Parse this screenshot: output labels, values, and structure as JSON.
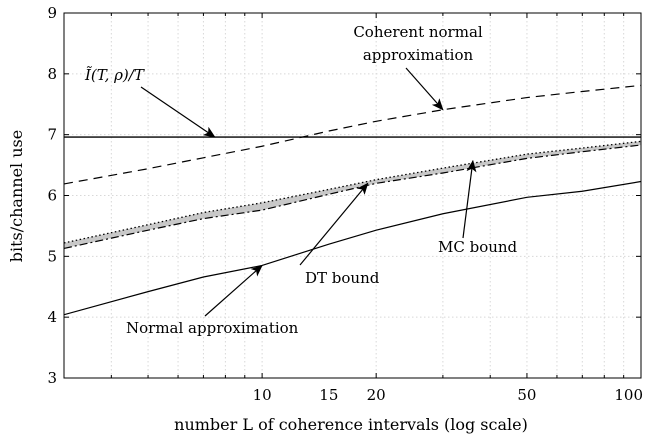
{
  "chart_data": {
    "type": "line",
    "title": "",
    "xlabel": "number L of coherence intervals (log scale)",
    "ylabel": "bits/channel use",
    "xscale": "log",
    "xlim": [
      3,
      100
    ],
    "ylim": [
      3,
      9
    ],
    "xticks": [
      10,
      15,
      20,
      50,
      100
    ],
    "yticks": [
      3,
      4,
      5,
      6,
      7,
      8,
      9
    ],
    "grid": true,
    "series": [
      {
        "name": "Coherent normal approximation",
        "style": "dashed",
        "x": [
          3,
          5,
          7,
          10,
          15,
          20,
          30,
          50,
          70,
          100
        ],
        "y": [
          6.19,
          6.44,
          6.62,
          6.81,
          7.06,
          7.22,
          7.41,
          7.61,
          7.71,
          7.81
        ]
      },
      {
        "name": "Ĩ(T,ρ)/T",
        "style": "solid",
        "x": [
          3,
          100
        ],
        "y": [
          6.96,
          6.96
        ]
      },
      {
        "name": "MC bound",
        "style": "dotted",
        "x": [
          3,
          5,
          7,
          10,
          15,
          20,
          30,
          50,
          70,
          100
        ],
        "y": [
          5.22,
          5.52,
          5.72,
          5.88,
          6.1,
          6.26,
          6.45,
          6.68,
          6.78,
          6.89
        ]
      },
      {
        "name": "DT bound",
        "style": "dashdot",
        "x": [
          3,
          5,
          7,
          10,
          15,
          20,
          30,
          50,
          70,
          100
        ],
        "y": [
          5.13,
          5.43,
          5.62,
          5.76,
          6.02,
          6.2,
          6.37,
          6.61,
          6.72,
          6.83
        ]
      },
      {
        "name": "Normal approximation",
        "style": "solid",
        "x": [
          3,
          5,
          7,
          10,
          15,
          20,
          30,
          50,
          70,
          100
        ],
        "y": [
          4.04,
          4.42,
          4.66,
          4.85,
          5.2,
          5.43,
          5.7,
          5.97,
          6.07,
          6.23
        ]
      }
    ],
    "annotations": [
      {
        "label": "Ĩ(T, ρ)/T",
        "arrow_x": 7.5,
        "arrow_y": 6.96
      },
      {
        "line1": "Coherent normal",
        "line2": "approximation",
        "arrow_x": 30,
        "arrow_y": 7.41
      },
      {
        "label": "MC bound",
        "arrow_x": 36,
        "arrow_y": 6.57
      },
      {
        "label": "DT bound",
        "arrow_x": 19,
        "arrow_y": 6.2
      },
      {
        "label": "Normal approximation",
        "arrow_x": 10,
        "arrow_y": 4.85
      }
    ]
  }
}
